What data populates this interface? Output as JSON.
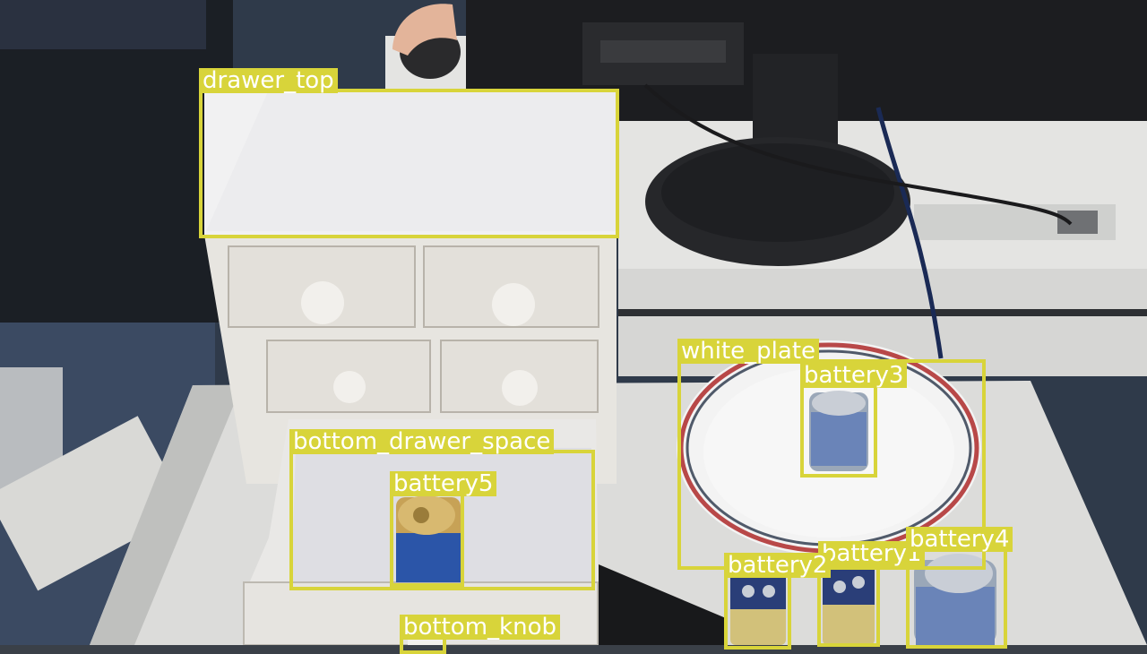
{
  "annotations": {
    "color": "#d8d43a",
    "labels": {
      "drawer_top": "drawer_top",
      "white_plate": "white_plate",
      "battery3": "battery3",
      "bottom_drawer_space": "bottom_drawer_space",
      "battery5": "battery5",
      "battery2": "battery2",
      "battery1": "battery1",
      "battery4": "battery4",
      "bottom_knob": "bottom_knob"
    }
  }
}
